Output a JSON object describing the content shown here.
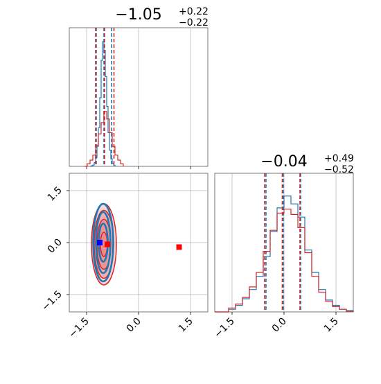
{
  "chart_data": {
    "type": "corner",
    "params": [
      {
        "title": "−1.05",
        "sup": "+0.22",
        "sub": "−0.22",
        "range": [
          -2.0,
          2.0
        ],
        "ticks": [
          -1.5,
          0.0,
          1.5
        ],
        "tick_labels": [
          "−1.5",
          "0.0",
          "1.5"
        ],
        "series": [
          {
            "name": "blue",
            "color": "#1f77b4",
            "median": -1.0,
            "q_low": -1.22,
            "q_high": -0.78,
            "bins": [
              [
                -1.4,
                0.0
              ],
              [
                -1.36,
                0.005
              ],
              [
                -1.32,
                0.01
              ],
              [
                -1.28,
                0.03
              ],
              [
                -1.24,
                0.07
              ],
              [
                -1.2,
                0.16
              ],
              [
                -1.16,
                0.31
              ],
              [
                -1.12,
                0.55
              ],
              [
                -1.08,
                0.85
              ],
              [
                -1.04,
                1.0
              ],
              [
                -1.0,
                0.93
              ],
              [
                -0.96,
                0.72
              ],
              [
                -0.92,
                0.48
              ],
              [
                -0.88,
                0.27
              ],
              [
                -0.84,
                0.13
              ],
              [
                -0.8,
                0.06
              ],
              [
                -0.76,
                0.025
              ],
              [
                -0.72,
                0.01
              ],
              [
                -0.68,
                0.0
              ]
            ]
          },
          {
            "name": "red",
            "color": "#d62728",
            "median": -0.98,
            "q_low": -1.24,
            "q_high": -0.71,
            "bins": [
              [
                -1.56,
                0.0
              ],
              [
                -1.48,
                0.02
              ],
              [
                -1.4,
                0.05
              ],
              [
                -1.32,
                0.09
              ],
              [
                -1.24,
                0.17
              ],
              [
                -1.16,
                0.26
              ],
              [
                -1.08,
                0.35
              ],
              [
                -1.0,
                0.44
              ],
              [
                -0.92,
                0.38
              ],
              [
                -0.84,
                0.27
              ],
              [
                -0.76,
                0.16
              ],
              [
                -0.68,
                0.09
              ],
              [
                -0.6,
                0.05
              ],
              [
                -0.52,
                0.02
              ],
              [
                -0.44,
                0.0
              ]
            ]
          }
        ]
      },
      {
        "title": "−0.04",
        "sup": "+0.49",
        "sub": "−0.52",
        "range": [
          -2.0,
          2.0
        ],
        "ticks": [
          -1.5,
          0.0,
          1.5
        ],
        "tick_labels": [
          "−1.5",
          "0.0",
          "1.5"
        ],
        "series": [
          {
            "name": "blue",
            "color": "#1f77b4",
            "median": -0.02,
            "q_low": -0.52,
            "q_high": 0.48,
            "bins": [
              [
                -2.0,
                0.0
              ],
              [
                -1.6,
                0.02
              ],
              [
                -1.4,
                0.05
              ],
              [
                -1.2,
                0.1
              ],
              [
                -1.0,
                0.17
              ],
              [
                -0.8,
                0.27
              ],
              [
                -0.6,
                0.42
              ],
              [
                -0.4,
                0.61
              ],
              [
                -0.2,
                0.79
              ],
              [
                0.0,
                0.88
              ],
              [
                0.2,
                0.82
              ],
              [
                0.4,
                0.72
              ],
              [
                0.6,
                0.47
              ],
              [
                0.8,
                0.3
              ],
              [
                1.0,
                0.17
              ],
              [
                1.2,
                0.09
              ],
              [
                1.4,
                0.05
              ],
              [
                1.6,
                0.02
              ],
              [
                1.8,
                0.01
              ],
              [
                2.0,
                0.0
              ]
            ]
          },
          {
            "name": "red",
            "color": "#d62728",
            "median": -0.05,
            "q_low": -0.56,
            "q_high": 0.46,
            "bins": [
              [
                -2.0,
                0.0
              ],
              [
                -1.6,
                0.03
              ],
              [
                -1.4,
                0.06
              ],
              [
                -1.2,
                0.11
              ],
              [
                -1.0,
                0.19
              ],
              [
                -0.8,
                0.3
              ],
              [
                -0.6,
                0.46
              ],
              [
                -0.4,
                0.62
              ],
              [
                -0.2,
                0.75
              ],
              [
                0.0,
                0.78
              ],
              [
                0.2,
                0.74
              ],
              [
                0.4,
                0.64
              ],
              [
                0.6,
                0.45
              ],
              [
                0.8,
                0.27
              ],
              [
                1.0,
                0.15
              ],
              [
                1.2,
                0.08
              ],
              [
                1.4,
                0.04
              ],
              [
                1.6,
                0.02
              ],
              [
                1.8,
                0.005
              ],
              [
                2.0,
                0.0
              ]
            ]
          }
        ]
      }
    ],
    "joint": {
      "contours": [
        {
          "color": "#d62728",
          "fill": "#e8868a",
          "center": [
            -1.0,
            -0.05
          ],
          "radii": [
            [
              0.36,
              1.17
            ],
            [
              0.28,
              0.98
            ],
            [
              0.2,
              0.72
            ],
            [
              0.1,
              0.35
            ]
          ]
        },
        {
          "color": "#1f77b4",
          "fill": "none",
          "center": [
            -1.02,
            0.0
          ],
          "radii": [
            [
              0.29,
              1.12
            ],
            [
              0.21,
              0.88
            ],
            [
              0.13,
              0.55
            ]
          ]
        }
      ],
      "markers": [
        {
          "name": "blue",
          "x": -1.12,
          "y": 0.0,
          "color": "#0000ff"
        },
        {
          "name": "red",
          "x": -0.9,
          "y": -0.05,
          "color": "#ff0000"
        },
        {
          "name": "red",
          "x": 1.17,
          "y": -0.13,
          "color": "#ff0000"
        }
      ]
    },
    "grid": true
  }
}
